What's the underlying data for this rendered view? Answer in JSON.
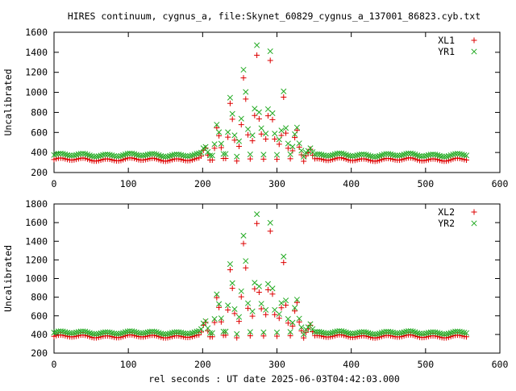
{
  "title": "HIRES continuum, cygnus_a, file:Skynet_60829_cygnus_a_137001_86823.cyb.txt",
  "xlabel": "rel seconds : UT date 2025-06-03T04:42:03.000",
  "colors": {
    "red": "#dd0000",
    "green": "#22aa22"
  },
  "chart_data": [
    {
      "type": "scatter",
      "ylabel": "Uncalibrated",
      "xlim": [
        0,
        600
      ],
      "ylim": [
        200,
        1600
      ],
      "x_ticks": [
        0,
        100,
        200,
        300,
        400,
        500,
        600
      ],
      "y_ticks": [
        200,
        400,
        600,
        800,
        1000,
        1200,
        1400,
        1600
      ],
      "grid": false,
      "legend_position": "top-right",
      "series": [
        {
          "name": "XL1",
          "marker": "+",
          "color": "#dd0000",
          "baseline": 330,
          "peak": 1380,
          "x_range": [
            0,
            555
          ]
        },
        {
          "name": "YR1",
          "marker": "x",
          "color": "#22aa22",
          "baseline": 375,
          "peak": 1480,
          "x_range": [
            0,
            555
          ]
        }
      ],
      "scan_points": [
        {
          "x": 203,
          "y": 450
        },
        {
          "x": 220,
          "y": 680
        },
        {
          "x": 238,
          "y": 960
        },
        {
          "x": 256,
          "y": 1230
        },
        {
          "x": 273,
          "y": 1380
        },
        {
          "x": 291,
          "y": 1300
        },
        {
          "x": 309,
          "y": 960
        },
        {
          "x": 326,
          "y": 650
        },
        {
          "x": 344,
          "y": 450
        }
      ]
    },
    {
      "type": "scatter",
      "ylabel": "Uncalibrated",
      "xlim": [
        0,
        600
      ],
      "ylim": [
        200,
        1800
      ],
      "x_ticks": [
        0,
        100,
        200,
        300,
        400,
        500,
        600
      ],
      "y_ticks": [
        200,
        400,
        600,
        800,
        1000,
        1200,
        1400,
        1600,
        1800
      ],
      "grid": false,
      "legend_position": "top-right",
      "series": [
        {
          "name": "XL2",
          "marker": "+",
          "color": "#dd0000",
          "baseline": 380,
          "peak": 1600,
          "x_range": [
            0,
            555
          ]
        },
        {
          "name": "YR2",
          "marker": "x",
          "color": "#22aa22",
          "baseline": 420,
          "peak": 1700,
          "x_range": [
            0,
            555
          ]
        }
      ],
      "scan_points": [
        {
          "x": 203,
          "y": 540
        },
        {
          "x": 220,
          "y": 840
        },
        {
          "x": 238,
          "y": 1180
        },
        {
          "x": 256,
          "y": 1480
        },
        {
          "x": 273,
          "y": 1600
        },
        {
          "x": 291,
          "y": 1490
        },
        {
          "x": 309,
          "y": 1180
        },
        {
          "x": 326,
          "y": 780
        },
        {
          "x": 344,
          "y": 520
        }
      ]
    }
  ]
}
